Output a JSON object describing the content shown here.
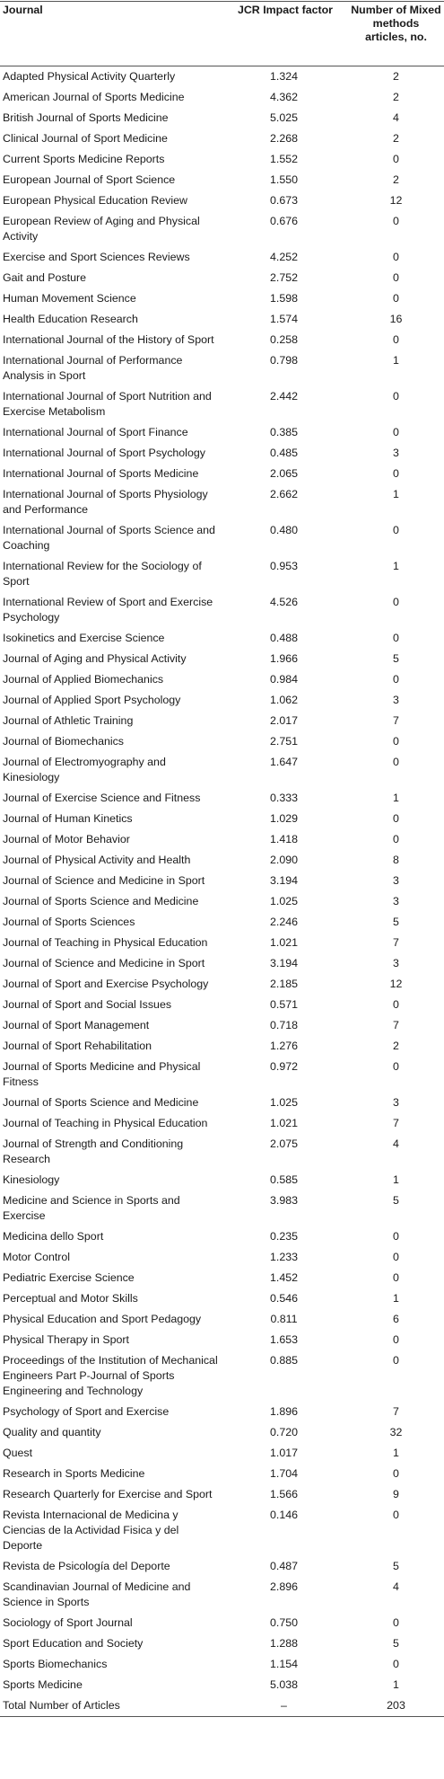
{
  "table": {
    "headers": {
      "journal": "Journal",
      "impact": "JCR Impact factor",
      "articles": "Number of Mixed methods articles, no."
    },
    "rows": [
      {
        "journal": "Adapted Physical Activity Quarterly",
        "impact": "1.324",
        "articles": "2"
      },
      {
        "journal": "American Journal of Sports Medicine",
        "impact": "4.362",
        "articles": "2"
      },
      {
        "journal": "British Journal of Sports Medicine",
        "impact": "5.025",
        "articles": "4"
      },
      {
        "journal": "Clinical Journal of Sport Medicine",
        "impact": "2.268",
        "articles": "2"
      },
      {
        "journal": "Current Sports Medicine Reports",
        "impact": "1.552",
        "articles": "0"
      },
      {
        "journal": "European Journal of Sport Science",
        "impact": "1.550",
        "articles": "2"
      },
      {
        "journal": "European Physical Education Review",
        "impact": "0.673",
        "articles": "12"
      },
      {
        "journal": "European Review of Aging and Physical Activity",
        "impact": "0.676",
        "articles": "0"
      },
      {
        "journal": "Exercise and Sport Sciences Reviews",
        "impact": "4.252",
        "articles": "0"
      },
      {
        "journal": "Gait and Posture",
        "impact": "2.752",
        "articles": "0"
      },
      {
        "journal": "Human Movement Science",
        "impact": "1.598",
        "articles": "0"
      },
      {
        "journal": "Health Education Research",
        "impact": "1.574",
        "articles": "16"
      },
      {
        "journal": "International Journal of the History of Sport",
        "impact": "0.258",
        "articles": "0"
      },
      {
        "journal": "International Journal of Performance Analysis in Sport",
        "impact": "0.798",
        "articles": "1"
      },
      {
        "journal": "International Journal of Sport Nutrition and Exercise Metabolism",
        "impact": "2.442",
        "articles": "0"
      },
      {
        "journal": "International Journal of Sport Finance",
        "impact": "0.385",
        "articles": "0"
      },
      {
        "journal": "International Journal of Sport Psychology",
        "impact": "0.485",
        "articles": "3"
      },
      {
        "journal": "International Journal of Sports Medicine",
        "impact": "2.065",
        "articles": "0"
      },
      {
        "journal": "International Journal of Sports Physiology and Performance",
        "impact": "2.662",
        "articles": "1"
      },
      {
        "journal": "International Journal of Sports Science and Coaching",
        "impact": "0.480",
        "articles": "0"
      },
      {
        "journal": "International Review for the Sociology of Sport",
        "impact": "0.953",
        "articles": "1"
      },
      {
        "journal": "International Review of Sport and Exercise Psychology",
        "impact": "4.526",
        "articles": "0"
      },
      {
        "journal": "Isokinetics and Exercise Science",
        "impact": "0.488",
        "articles": "0"
      },
      {
        "journal": "Journal of Aging and Physical Activity",
        "impact": "1.966",
        "articles": "5"
      },
      {
        "journal": "Journal of Applied Biomechanics",
        "impact": "0.984",
        "articles": "0"
      },
      {
        "journal": "Journal of Applied Sport Psychology",
        "impact": "1.062",
        "articles": "3"
      },
      {
        "journal": "Journal of Athletic Training",
        "impact": "2.017",
        "articles": "7"
      },
      {
        "journal": "Journal of Biomechanics",
        "impact": "2.751",
        "articles": "0"
      },
      {
        "journal": "Journal of Electromyography and Kinesiology",
        "impact": "1.647",
        "articles": "0"
      },
      {
        "journal": "Journal of Exercise Science and Fitness",
        "impact": "0.333",
        "articles": "1"
      },
      {
        "journal": "Journal of Human Kinetics",
        "impact": "1.029",
        "articles": "0"
      },
      {
        "journal": "Journal of Motor Behavior",
        "impact": "1.418",
        "articles": "0"
      },
      {
        "journal": "Journal of Physical Activity and Health",
        "impact": "2.090",
        "articles": "8"
      },
      {
        "journal": "Journal of Science and Medicine in Sport",
        "impact": "3.194",
        "articles": "3"
      },
      {
        "journal": "Journal of Sports Science and Medicine",
        "impact": "1.025",
        "articles": "3"
      },
      {
        "journal": "Journal of Sports Sciences",
        "impact": "2.246",
        "articles": "5"
      },
      {
        "journal": "Journal of Teaching in Physical Education",
        "impact": "1.021",
        "articles": "7"
      },
      {
        "journal": "Journal of Science and Medicine in Sport",
        "impact": "3.194",
        "articles": "3"
      },
      {
        "journal": "Journal of Sport and Exercise Psychology",
        "impact": "2.185",
        "articles": "12"
      },
      {
        "journal": "Journal of Sport and Social Issues",
        "impact": "0.571",
        "articles": "0"
      },
      {
        "journal": "Journal of Sport Management",
        "impact": "0.718",
        "articles": "7"
      },
      {
        "journal": "Journal of Sport Rehabilitation",
        "impact": "1.276",
        "articles": "2"
      },
      {
        "journal": "Journal of Sports Medicine and Physical Fitness",
        "impact": "0.972",
        "articles": "0"
      },
      {
        "journal": "Journal of Sports Science and Medicine",
        "impact": "1.025",
        "articles": "3"
      },
      {
        "journal": "Journal of Teaching in Physical Education",
        "impact": "1.021",
        "articles": "7"
      },
      {
        "journal": "Journal of Strength and Conditioning Research",
        "impact": "2.075",
        "articles": "4"
      },
      {
        "journal": "Kinesiology",
        "impact": "0.585",
        "articles": "1"
      },
      {
        "journal": "Medicine and Science in Sports and Exercise",
        "impact": "3.983",
        "articles": "5"
      },
      {
        "journal": "Medicina dello Sport",
        "impact": "0.235",
        "articles": "0"
      },
      {
        "journal": "Motor Control",
        "impact": "1.233",
        "articles": "0"
      },
      {
        "journal": "Pediatric Exercise Science",
        "impact": "1.452",
        "articles": "0"
      },
      {
        "journal": "Perceptual and Motor Skills",
        "impact": "0.546",
        "articles": "1"
      },
      {
        "journal": "Physical Education and Sport Pedagogy",
        "impact": "0.811",
        "articles": "6"
      },
      {
        "journal": "Physical Therapy in Sport",
        "impact": "1.653",
        "articles": "0"
      },
      {
        "journal": "Proceedings of the Institution of Mechanical Engineers Part P-Journal of Sports Engineering and Technology",
        "impact": "0.885",
        "articles": "0"
      },
      {
        "journal": "Psychology of Sport and Exercise",
        "impact": "1.896",
        "articles": "7"
      },
      {
        "journal": "Quality and quantity",
        "impact": "0.720",
        "articles": "32"
      },
      {
        "journal": "Quest",
        "impact": "1.017",
        "articles": "1"
      },
      {
        "journal": "Research in Sports Medicine",
        "impact": "1.704",
        "articles": "0"
      },
      {
        "journal": "Research Quarterly for Exercise and Sport",
        "impact": "1.566",
        "articles": "9"
      },
      {
        "journal": "Revista Internacional de Medicina y Ciencias de la Actividad Fisica y del Deporte",
        "impact": "0.146",
        "articles": "0"
      },
      {
        "journal": "Revista de Psicología del Deporte",
        "impact": "0.487",
        "articles": "5"
      },
      {
        "journal": "Scandinavian Journal of Medicine and Science in Sports",
        "impact": "2.896",
        "articles": "4"
      },
      {
        "journal": "Sociology of Sport Journal",
        "impact": "0.750",
        "articles": "0"
      },
      {
        "journal": "Sport Education and Society",
        "impact": "1.288",
        "articles": "5"
      },
      {
        "journal": "Sports Biomechanics",
        "impact": "1.154",
        "articles": "0"
      },
      {
        "journal": "Sports Medicine",
        "impact": "5.038",
        "articles": "1"
      },
      {
        "journal": "Total Number of Articles",
        "impact": "–",
        "articles": "203"
      }
    ]
  }
}
